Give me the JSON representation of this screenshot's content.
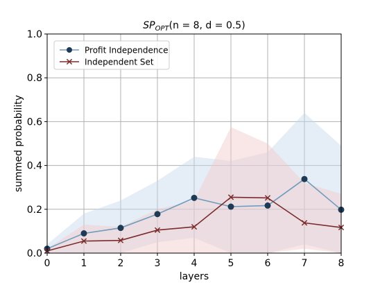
{
  "chart_data": {
    "type": "line",
    "title": {
      "prefix": "SP",
      "subscript": "OPT",
      "suffix": "(n = 8, d = 0.5)"
    },
    "xlabel": "layers",
    "ylabel": "summed probability",
    "xlim": [
      0,
      8
    ],
    "ylim": [
      0,
      1.0
    ],
    "x_ticks": [
      0,
      1,
      2,
      3,
      4,
      5,
      6,
      7,
      8
    ],
    "x_tick_labels": [
      "0",
      "1",
      "2",
      "3",
      "4",
      "5",
      "6",
      "7",
      "8"
    ],
    "y_ticks": [
      0.0,
      0.2,
      0.4,
      0.6,
      0.8,
      1.0
    ],
    "y_tick_labels": [
      "0.0",
      "0.2",
      "0.4",
      "0.6",
      "0.8",
      "1.0"
    ],
    "grid": true,
    "legend_position": "top-left",
    "x": [
      0,
      1,
      2,
      3,
      4,
      5,
      6,
      7,
      8
    ],
    "series": [
      {
        "name": "Profit Independence",
        "marker": "circle",
        "color": "#6f9bbd",
        "marker_color": "#1f3a55",
        "band_color": "#c6d9ec",
        "values": [
          0.02,
          0.09,
          0.115,
          0.178,
          0.252,
          0.212,
          0.217,
          0.338,
          0.198
        ],
        "upper": [
          0.04,
          0.18,
          0.24,
          0.33,
          0.44,
          0.42,
          0.46,
          0.64,
          0.49
        ],
        "lower": [
          0.0,
          0.0,
          0.0,
          0.05,
          0.07,
          0.0,
          0.0,
          0.04,
          0.0
        ]
      },
      {
        "name": "Independent Set",
        "marker": "x",
        "color": "#7b2b2b",
        "marker_color": "#7b2b2b",
        "band_color": "#f2c7c7",
        "values": [
          0.01,
          0.055,
          0.058,
          0.105,
          0.12,
          0.255,
          0.252,
          0.138,
          0.117
        ],
        "upper": [
          0.02,
          0.13,
          0.12,
          0.2,
          0.24,
          0.575,
          0.5,
          0.32,
          0.27
        ],
        "lower": [
          0.0,
          0.0,
          0.0,
          0.0,
          0.0,
          0.0,
          0.0,
          0.02,
          0.0
        ]
      }
    ]
  },
  "colors": {
    "grid": "#b0b0b0",
    "axis": "#000000"
  }
}
